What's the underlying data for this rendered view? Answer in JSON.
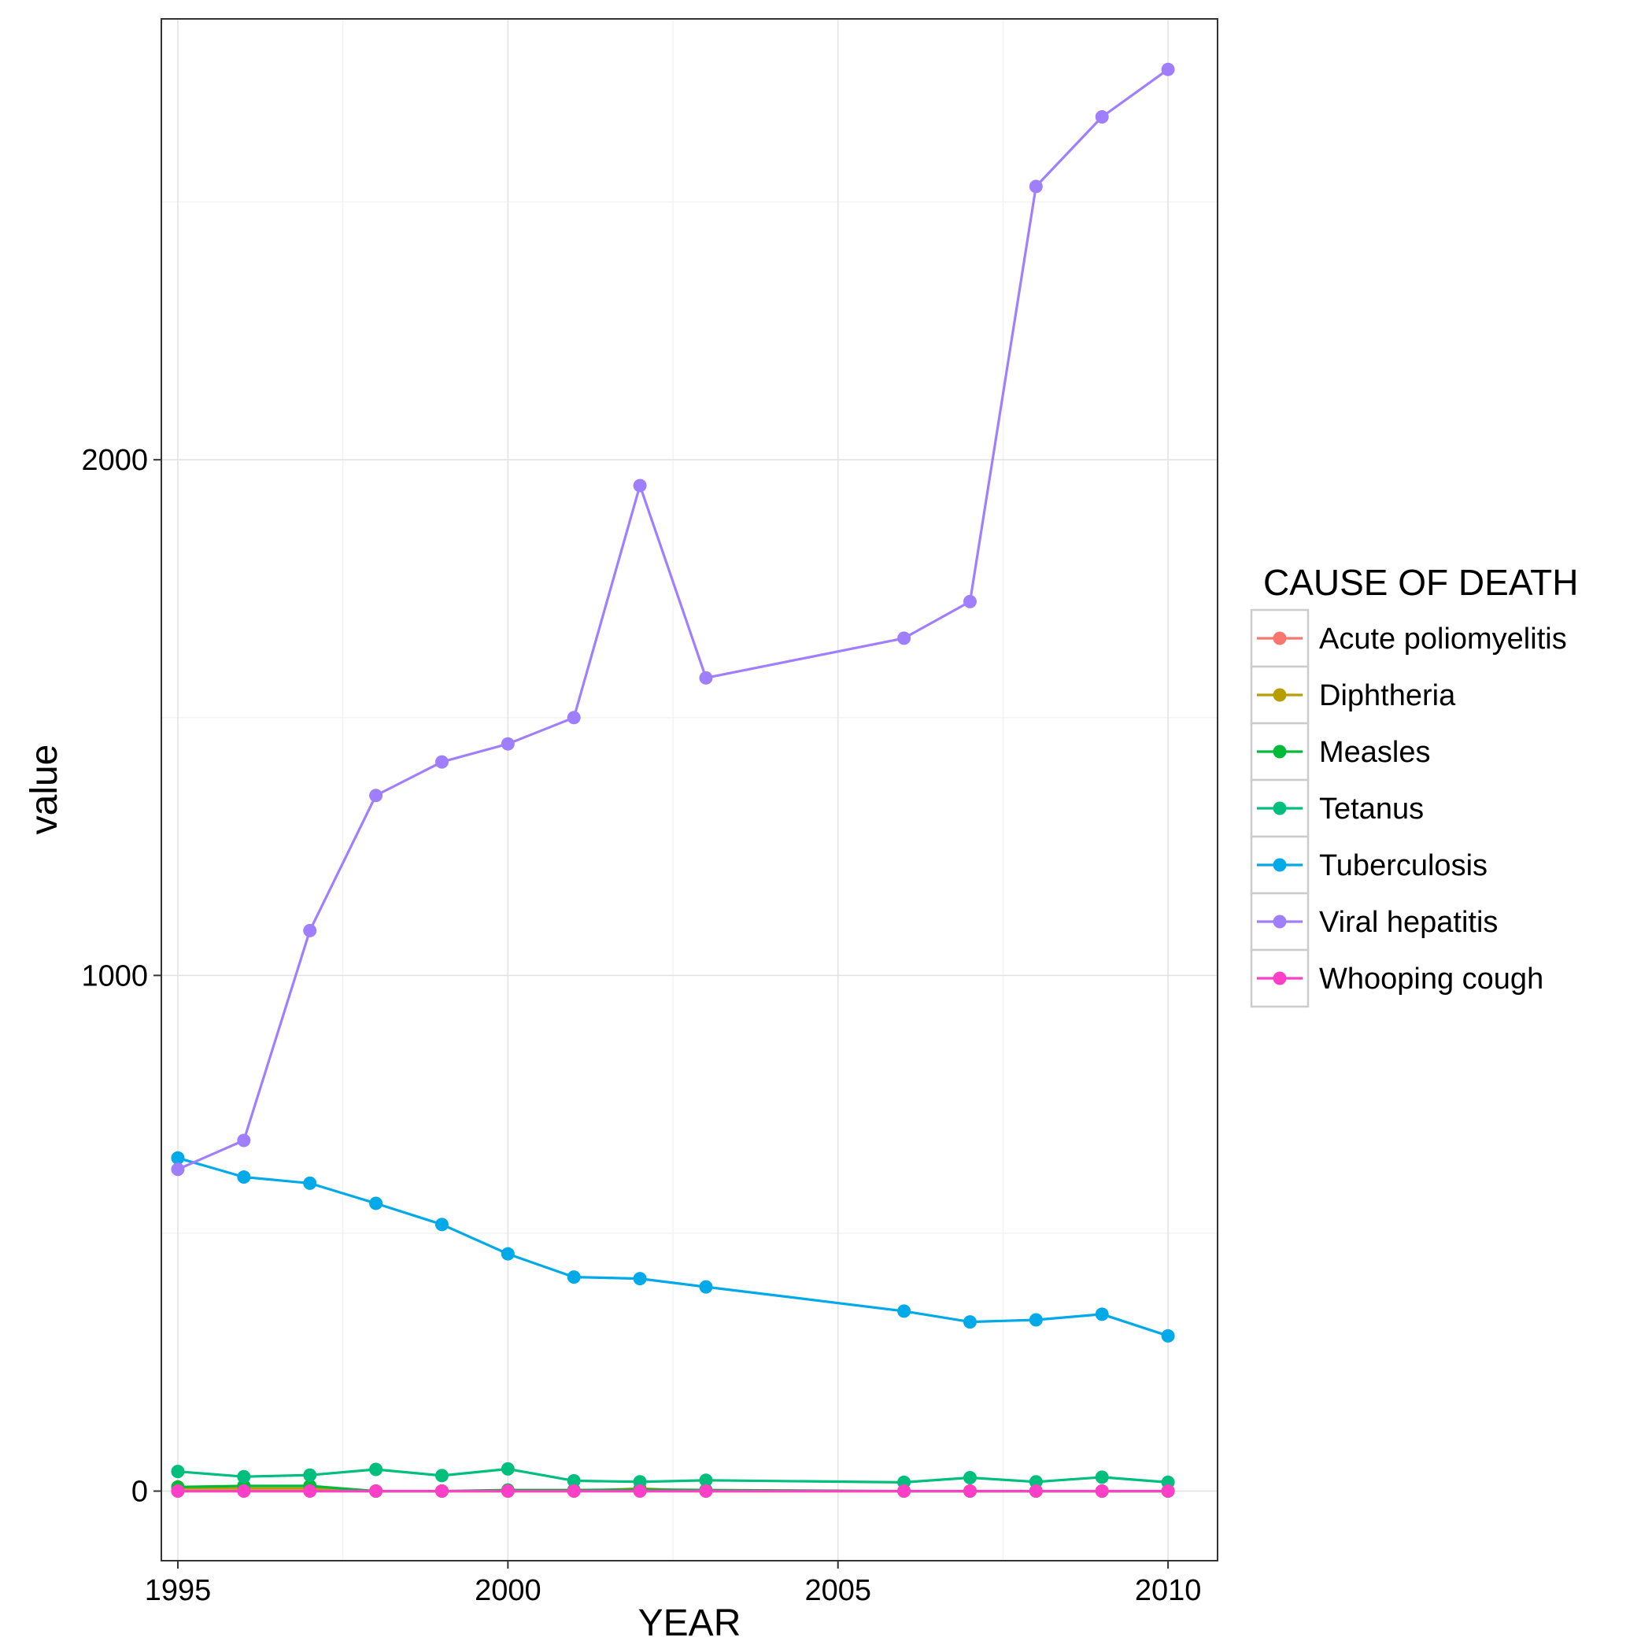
{
  "chart_data": {
    "type": "line",
    "xlabel": "YEAR",
    "ylabel": "value",
    "xlim": [
      1994.75,
      2010.75
    ],
    "ylim": [
      -135,
      2855
    ],
    "x_ticks": [
      1995,
      2000,
      2005,
      2010
    ],
    "x_minor_ticks": [
      1997.5,
      2002.5,
      2007.5
    ],
    "y_ticks": [
      0,
      1000,
      2000
    ],
    "y_minor_ticks": [
      500,
      1500,
      2500
    ],
    "grid": true,
    "legend": {
      "title": "CAUSE OF DEATH",
      "position": "right"
    },
    "x": [
      1995,
      1996,
      1997,
      1998,
      1999,
      2000,
      2001,
      2002,
      2003,
      2006,
      2007,
      2008,
      2009,
      2010
    ],
    "series": [
      {
        "name": "Acute poliomyelitis",
        "color": "#F8766D",
        "values": [
          0,
          0,
          0,
          0,
          0,
          0,
          0,
          0,
          0,
          0,
          0,
          0,
          0,
          0
        ]
      },
      {
        "name": "Diphtheria",
        "color": "#B79F00",
        "values": [
          5,
          5,
          5,
          0,
          0,
          0,
          0,
          5,
          0,
          0,
          0,
          0,
          0,
          0
        ]
      },
      {
        "name": "Measles",
        "color": "#00BA38",
        "values": [
          8,
          10,
          10,
          0,
          0,
          2,
          2,
          3,
          2,
          0,
          0,
          0,
          0,
          0
        ]
      },
      {
        "name": "Tetanus",
        "color": "#00BF7D",
        "values": [
          38,
          28,
          31,
          42,
          30,
          43,
          20,
          18,
          21,
          17,
          26,
          18,
          27,
          17
        ]
      },
      {
        "name": "Tuberculosis",
        "color": "#00A9E8",
        "values": [
          646,
          609,
          597,
          558,
          517,
          460,
          415,
          412,
          396,
          349,
          328,
          332,
          343,
          301
        ]
      },
      {
        "name": "Viral hepatitis",
        "color": "#9F7FFF",
        "values": [
          624,
          680,
          1087,
          1349,
          1414,
          1449,
          1500,
          1950,
          1577,
          1654,
          1725,
          2530,
          2665,
          2757
        ]
      },
      {
        "name": "Whooping cough",
        "color": "#FF3FC8",
        "values": [
          0,
          0,
          0,
          0,
          0,
          0,
          0,
          0,
          0,
          0,
          0,
          0,
          0,
          0
        ]
      }
    ]
  }
}
